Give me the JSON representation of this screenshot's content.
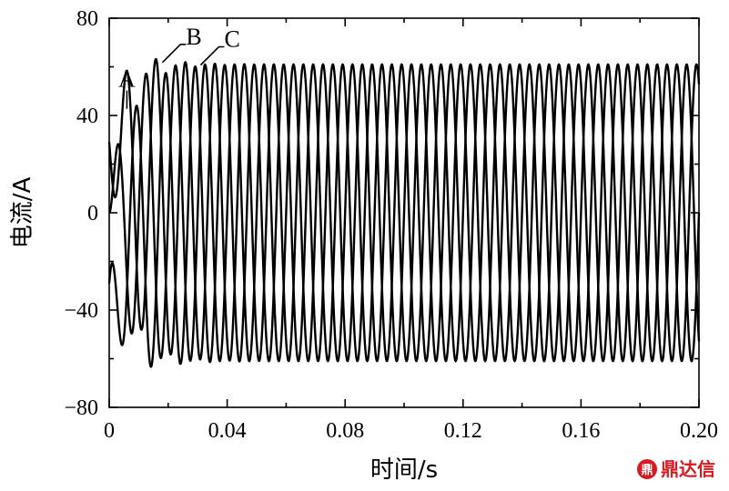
{
  "chart_data": {
    "type": "line",
    "xlabel": "时间/s",
    "ylabel": "电流/A",
    "xlim": [
      0,
      0.2
    ],
    "ylim": [
      -80,
      80
    ],
    "x_ticks": [
      "0",
      "0.04",
      "0.08",
      "0.12",
      "0.16",
      "0.20"
    ],
    "x_tick_values": [
      0,
      0.04,
      0.08,
      0.12,
      0.16,
      0.2
    ],
    "y_ticks": [
      "80",
      "40",
      "0",
      "−40",
      "−80"
    ],
    "y_tick_values": [
      80,
      40,
      0,
      -40,
      -80
    ],
    "grid": false,
    "frequency_hz": 100,
    "series": [
      {
        "name": "A",
        "steady_amplitude": 61,
        "phase_deg": 0,
        "peak_points": [
          [
            0.006,
            42
          ],
          [
            0.025,
            -60
          ],
          [
            0.045,
            59
          ],
          [
            0.065,
            -61
          ],
          [
            0.085,
            61
          ]
        ]
      },
      {
        "name": "B",
        "steady_amplitude": 61,
        "phase_deg": -120,
        "peak_points": [
          [
            0.004,
            -9
          ],
          [
            0.018,
            61
          ],
          [
            0.038,
            -61
          ],
          [
            0.058,
            60
          ],
          [
            0.078,
            -61
          ]
        ]
      },
      {
        "name": "C",
        "steady_amplitude": 61,
        "phase_deg": 120,
        "peak_points": [
          [
            0.012,
            -60
          ],
          [
            0.031,
            60
          ],
          [
            0.051,
            -61
          ],
          [
            0.071,
            60
          ],
          [
            0.091,
            -61
          ]
        ]
      }
    ],
    "annotations": [
      {
        "text": "A",
        "x": 0.006,
        "y": 42
      },
      {
        "text": "B",
        "x": 0.018,
        "y": 61
      },
      {
        "text": "C",
        "x": 0.031,
        "y": 60
      }
    ]
  },
  "watermark": {
    "text": "鼎达信",
    "color": "#d71920"
  }
}
